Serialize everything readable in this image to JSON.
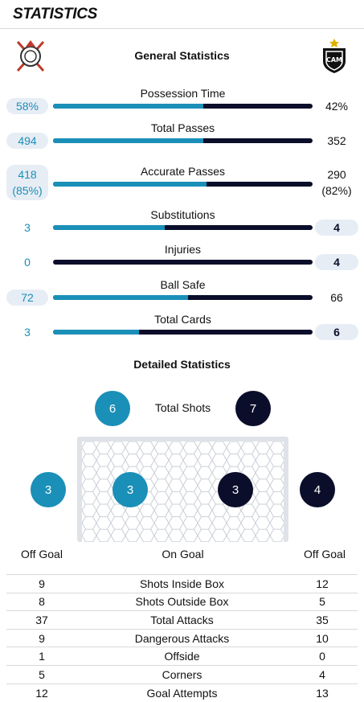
{
  "header": {
    "title": "STATISTICS"
  },
  "general_title": "General Statistics",
  "teams": {
    "home": {
      "crest": "corinthians-crest"
    },
    "away": {
      "crest": "atletico-mineiro-crest",
      "crest_text": "CAM"
    }
  },
  "general": [
    {
      "label": "Possession Time",
      "home": "58%",
      "away": "42%",
      "home_share": 0.58,
      "home_hl": true,
      "away_hl": false
    },
    {
      "label": "Total Passes",
      "home": "494",
      "away": "352",
      "home_share": 0.58,
      "home_hl": true,
      "away_hl": false
    },
    {
      "label": "Accurate Passes",
      "home": "418\n(85%)",
      "away": "290\n(82%)",
      "home_share": 0.59,
      "home_hl": true,
      "away_hl": false
    },
    {
      "label": "Substitutions",
      "home": "3",
      "away": "4",
      "home_share": 0.43,
      "home_hl": false,
      "away_hl": true
    },
    {
      "label": "Injuries",
      "home": "0",
      "away": "4",
      "home_share": 0.0,
      "home_hl": false,
      "away_hl": true
    },
    {
      "label": "Ball Safe",
      "home": "72",
      "away": "66",
      "home_share": 0.52,
      "home_hl": true,
      "away_hl": false
    },
    {
      "label": "Total Cards",
      "home": "3",
      "away": "6",
      "home_share": 0.33,
      "home_hl": false,
      "away_hl": true
    }
  ],
  "detailed_title": "Detailed Statistics",
  "shots": {
    "label": "Total Shots",
    "home_total": "6",
    "away_total": "7",
    "home_off": "3",
    "home_on": "3",
    "away_on": "3",
    "away_off": "4",
    "off_goal_label": "Off Goal",
    "on_goal_label": "On Goal"
  },
  "detail_rows": [
    {
      "label": "Shots Inside Box",
      "home": "9",
      "away": "12"
    },
    {
      "label": "Shots Outside Box",
      "home": "8",
      "away": "5"
    },
    {
      "label": "Total Attacks",
      "home": "37",
      "away": "35"
    },
    {
      "label": "Dangerous Attacks",
      "home": "9",
      "away": "10"
    },
    {
      "label": "Offside",
      "home": "1",
      "away": "0"
    },
    {
      "label": "Corners",
      "home": "5",
      "away": "4"
    },
    {
      "label": "Goal Attempts",
      "home": "12",
      "away": "13"
    }
  ],
  "colors": {
    "home": "#1a8fb8",
    "away": "#0b0e2a",
    "highlight_bg": "#e7edf5"
  }
}
